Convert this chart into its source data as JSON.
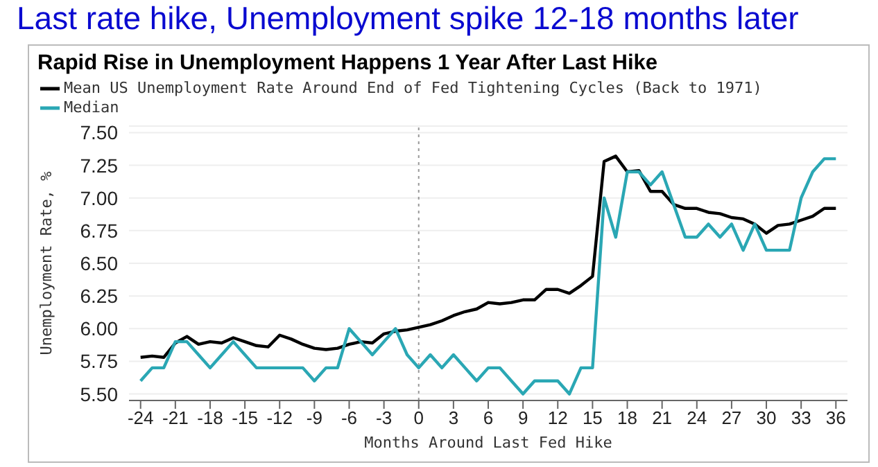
{
  "chart_data": {
    "type": "line",
    "title": "Last rate hike, Unemployment spike 12-18 months later",
    "subtitle": "Rapid Rise in Unemployment Happens 1 Year After Last Hike",
    "xlabel": "Months Around Last Fed Hike",
    "ylabel": "Unemployment Rate, %",
    "x": [
      -24,
      -23,
      -22,
      -21,
      -20,
      -19,
      -18,
      -17,
      -16,
      -15,
      -14,
      -13,
      -12,
      -11,
      -10,
      -9,
      -8,
      -7,
      -6,
      -5,
      -4,
      -3,
      -2,
      -1,
      0,
      1,
      2,
      3,
      4,
      5,
      6,
      7,
      8,
      9,
      10,
      11,
      12,
      13,
      14,
      15,
      16,
      17,
      18,
      19,
      20,
      21,
      22,
      23,
      24,
      25,
      26,
      27,
      28,
      29,
      30,
      31,
      32,
      33,
      34,
      35,
      36
    ],
    "series": [
      {
        "name": "Mean US Unemployment Rate Around End of Fed Tightening Cycles (Back to 1971)",
        "color": "#000000",
        "values": [
          5.78,
          5.79,
          5.78,
          5.89,
          5.94,
          5.88,
          5.9,
          5.89,
          5.93,
          5.9,
          5.87,
          5.86,
          5.95,
          5.92,
          5.88,
          5.85,
          5.84,
          5.85,
          5.88,
          5.9,
          5.89,
          5.96,
          5.98,
          5.99,
          6.01,
          6.03,
          6.06,
          6.1,
          6.13,
          6.15,
          6.2,
          6.19,
          6.2,
          6.22,
          6.22,
          6.3,
          6.3,
          6.27,
          6.33,
          6.4,
          7.28,
          7.32,
          7.2,
          7.21,
          7.05,
          7.05,
          6.95,
          6.92,
          6.92,
          6.89,
          6.88,
          6.85,
          6.84,
          6.8,
          6.73,
          6.79,
          6.8,
          6.83,
          6.86,
          6.92,
          6.92
        ]
      },
      {
        "name": "Median",
        "color": "#2aa7b4",
        "values": [
          5.6,
          5.7,
          5.7,
          5.9,
          5.9,
          5.8,
          5.7,
          5.8,
          5.9,
          5.8,
          5.7,
          5.7,
          5.7,
          5.7,
          5.7,
          5.6,
          5.7,
          5.7,
          6.0,
          5.9,
          5.8,
          5.9,
          6.0,
          5.8,
          5.7,
          5.8,
          5.7,
          5.8,
          5.7,
          5.6,
          5.7,
          5.7,
          5.6,
          5.5,
          5.6,
          5.6,
          5.6,
          5.5,
          5.7,
          5.7,
          7.0,
          6.7,
          7.2,
          7.2,
          7.1,
          7.2,
          6.95,
          6.7,
          6.7,
          6.8,
          6.7,
          6.8,
          6.6,
          6.8,
          6.6,
          6.6,
          6.6,
          7.0,
          7.2,
          7.3,
          7.3
        ]
      }
    ],
    "xlim": [
      -25,
      37
    ],
    "xticks": [
      -24,
      -21,
      -18,
      -15,
      -12,
      -9,
      -6,
      -3,
      0,
      3,
      6,
      9,
      12,
      15,
      18,
      21,
      24,
      27,
      30,
      33,
      36
    ],
    "ylim": [
      5.45,
      7.55
    ],
    "yticks": [
      {
        "value": 5.5,
        "label": "5.50"
      },
      {
        "value": 5.75,
        "label": "5.75"
      },
      {
        "value": 6,
        "label": "6.00"
      },
      {
        "value": 6.25,
        "label": "6.25"
      },
      {
        "value": 6.5,
        "label": "6.50"
      },
      {
        "value": 6.75,
        "label": "6.75"
      },
      {
        "value": 7,
        "label": "7.00"
      },
      {
        "value": 7.25,
        "label": "7.25"
      },
      {
        "value": 7.5,
        "label": "7.50"
      }
    ],
    "ref_lines": [
      {
        "axis": "x",
        "value": 0,
        "color": "#999999",
        "line_style": "dotted"
      }
    ],
    "grid": "y",
    "legend": "top left",
    "marker": "none",
    "line_style": "solid"
  }
}
